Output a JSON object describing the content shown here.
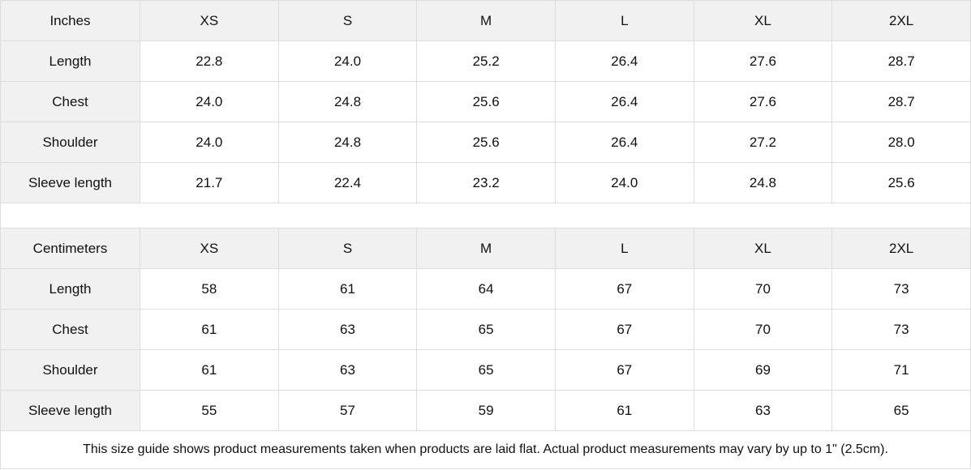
{
  "tables": [
    {
      "unit_label": "Inches",
      "sizes": [
        "XS",
        "S",
        "M",
        "L",
        "XL",
        "2XL"
      ],
      "rows": [
        {
          "label": "Length",
          "values": [
            "22.8",
            "24.0",
            "25.2",
            "26.4",
            "27.6",
            "28.7"
          ]
        },
        {
          "label": "Chest",
          "values": [
            "24.0",
            "24.8",
            "25.6",
            "26.4",
            "27.6",
            "28.7"
          ]
        },
        {
          "label": "Shoulder",
          "values": [
            "24.0",
            "24.8",
            "25.6",
            "26.4",
            "27.2",
            "28.0"
          ]
        },
        {
          "label": "Sleeve length",
          "values": [
            "21.7",
            "22.4",
            "23.2",
            "24.0",
            "24.8",
            "25.6"
          ]
        }
      ]
    },
    {
      "unit_label": "Centimeters",
      "sizes": [
        "XS",
        "S",
        "M",
        "L",
        "XL",
        "2XL"
      ],
      "rows": [
        {
          "label": "Length",
          "values": [
            "58",
            "61",
            "64",
            "67",
            "70",
            "73"
          ]
        },
        {
          "label": "Chest",
          "values": [
            "61",
            "63",
            "65",
            "67",
            "70",
            "73"
          ]
        },
        {
          "label": "Shoulder",
          "values": [
            "61",
            "63",
            "65",
            "67",
            "69",
            "71"
          ]
        },
        {
          "label": "Sleeve length",
          "values": [
            "55",
            "57",
            "59",
            "61",
            "63",
            "65"
          ]
        }
      ]
    }
  ],
  "footer": {
    "note": "This size guide shows product measurements taken when products are laid flat.  Actual product measurements may vary by up to 1\" (2.5cm)."
  },
  "colors": {
    "header_background": "#f1f1f1",
    "cell_background": "#ffffff",
    "border": "#dddddd",
    "text": "#111111"
  },
  "chart_data": [
    {
      "type": "table",
      "title": "Inches",
      "columns": [
        "Inches",
        "XS",
        "S",
        "M",
        "L",
        "XL",
        "2XL"
      ],
      "rows": [
        [
          "Length",
          22.8,
          24.0,
          25.2,
          26.4,
          27.6,
          28.7
        ],
        [
          "Chest",
          24.0,
          24.8,
          25.6,
          26.4,
          27.6,
          28.7
        ],
        [
          "Shoulder",
          24.0,
          24.8,
          25.6,
          26.4,
          27.2,
          28.0
        ],
        [
          "Sleeve length",
          21.7,
          22.4,
          23.2,
          24.0,
          24.8,
          25.6
        ]
      ]
    },
    {
      "type": "table",
      "title": "Centimeters",
      "columns": [
        "Centimeters",
        "XS",
        "S",
        "M",
        "L",
        "XL",
        "2XL"
      ],
      "rows": [
        [
          "Length",
          58,
          61,
          64,
          67,
          70,
          73
        ],
        [
          "Chest",
          61,
          63,
          65,
          67,
          70,
          73
        ],
        [
          "Shoulder",
          61,
          63,
          65,
          67,
          69,
          71
        ],
        [
          "Sleeve length",
          55,
          57,
          59,
          61,
          63,
          65
        ]
      ]
    }
  ]
}
